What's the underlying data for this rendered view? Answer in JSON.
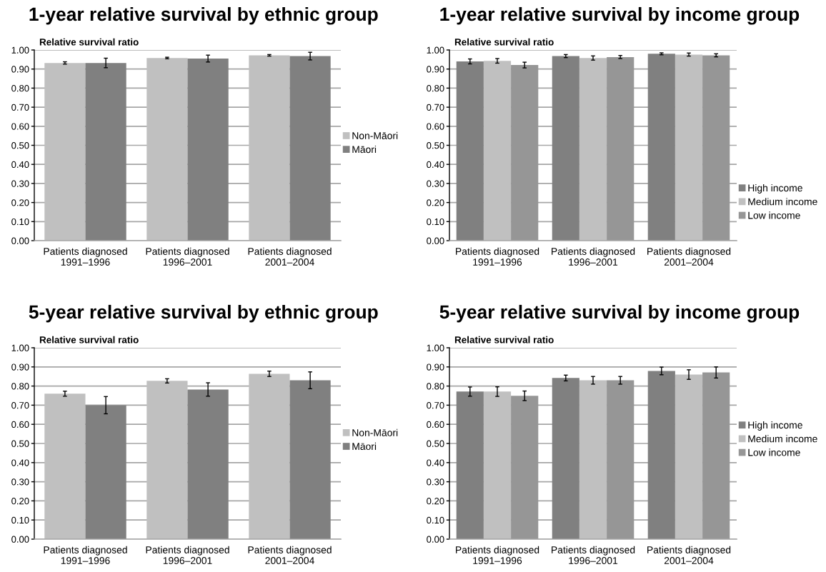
{
  "chart_data": [
    {
      "type": "bar",
      "title": "1-year relative survival by ethnic group",
      "ylabel": "Relative survival ratio",
      "categories": [
        "Patients diagnosed\n1991–1996",
        "Patients diagnosed\n1996–2001",
        "Patients diagnosed\n2001–2004"
      ],
      "series": [
        {
          "name": "Non-Māori",
          "color": "#c0c0c0",
          "values": [
            0.932,
            0.958,
            0.972
          ],
          "errors": [
            0.006,
            0.004,
            0.004
          ]
        },
        {
          "name": "Māori",
          "color": "#808080",
          "values": [
            0.932,
            0.955,
            0.968
          ],
          "errors": [
            0.025,
            0.018,
            0.02
          ]
        }
      ],
      "ylim": [
        0,
        1
      ],
      "yticks": [
        {
          "value": 0,
          "label": "0.00"
        },
        {
          "value": 0.1,
          "label": "0.10"
        },
        {
          "value": 0.2,
          "label": "0.20"
        },
        {
          "value": 0.3,
          "label": "0.30"
        },
        {
          "value": 0.4,
          "label": "0.40"
        },
        {
          "value": 0.5,
          "label": "0.50"
        },
        {
          "value": 0.6,
          "label": "0.60"
        },
        {
          "value": 0.7,
          "label": "0.70"
        },
        {
          "value": 0.8,
          "label": "0.80"
        },
        {
          "value": 0.9,
          "label": "0.90"
        },
        {
          "value": 1,
          "label": "1.00"
        }
      ],
      "grid": "y",
      "legend": "right"
    },
    {
      "type": "bar",
      "title": "1-year relative survival by income group",
      "ylabel": "Relative survival ratio",
      "categories": [
        "Patients diagnosed\n1991–1996",
        "Patients diagnosed\n1996–2001",
        "Patients diagnosed\n2001–2004"
      ],
      "series": [
        {
          "name": "High income",
          "color": "#808080",
          "values": [
            0.94,
            0.968,
            0.98
          ],
          "errors": [
            0.013,
            0.008,
            0.005
          ]
        },
        {
          "name": "Medium income",
          "color": "#c0c0c0",
          "values": [
            0.943,
            0.958,
            0.976
          ],
          "errors": [
            0.012,
            0.011,
            0.008
          ]
        },
        {
          "name": "Low income",
          "color": "#969696",
          "values": [
            0.921,
            0.963,
            0.972
          ],
          "errors": [
            0.015,
            0.008,
            0.008
          ]
        }
      ],
      "ylim": [
        0,
        1
      ],
      "yticks": [
        {
          "value": 0,
          "label": "0.00"
        },
        {
          "value": 0.1,
          "label": "0.10"
        },
        {
          "value": 0.2,
          "label": "0.20"
        },
        {
          "value": 0.3,
          "label": "0.30"
        },
        {
          "value": 0.4,
          "label": "0.40"
        },
        {
          "value": 0.5,
          "label": "0.50"
        },
        {
          "value": 0.6,
          "label": "0.60"
        },
        {
          "value": 0.7,
          "label": "0.70"
        },
        {
          "value": 0.8,
          "label": "0.80"
        },
        {
          "value": 0.9,
          "label": "0.90"
        },
        {
          "value": 1,
          "label": "1.00"
        }
      ],
      "grid": "y",
      "legend": "right"
    },
    {
      "type": "bar",
      "title": "5-year relative survival by ethnic group",
      "ylabel": "Relative survival ratio",
      "categories": [
        "Patients diagnosed\n1991–1996",
        "Patients diagnosed\n1996–2001",
        "Patients diagnosed\n2001–2004"
      ],
      "series": [
        {
          "name": "Non-Māori",
          "color": "#c0c0c0",
          "values": [
            0.76,
            0.827,
            0.864
          ],
          "errors": [
            0.013,
            0.011,
            0.014
          ]
        },
        {
          "name": "Māori",
          "color": "#808080",
          "values": [
            0.7,
            0.782,
            0.83
          ],
          "errors": [
            0.045,
            0.035,
            0.044
          ]
        }
      ],
      "ylim": [
        0,
        1
      ],
      "yticks": [
        {
          "value": 0,
          "label": "0.00"
        },
        {
          "value": 0.1,
          "label": "0.10"
        },
        {
          "value": 0.2,
          "label": "0.20"
        },
        {
          "value": 0.3,
          "label": "0.30"
        },
        {
          "value": 0.4,
          "label": "0.40"
        },
        {
          "value": 0.5,
          "label": "0.50"
        },
        {
          "value": 0.6,
          "label": "0.60"
        },
        {
          "value": 0.7,
          "label": "0.70"
        },
        {
          "value": 0.8,
          "label": "0.80"
        },
        {
          "value": 0.9,
          "label": "0.90"
        },
        {
          "value": 1,
          "label": "1.00"
        }
      ],
      "grid": "y",
      "legend": "right"
    },
    {
      "type": "bar",
      "title": "5-year relative survival by income group",
      "ylabel": "Relative survival ratio",
      "categories": [
        "Patients diagnosed\n1991–1996",
        "Patients diagnosed\n1996–2001",
        "Patients diagnosed\n2001–2004"
      ],
      "series": [
        {
          "name": "High income",
          "color": "#808080",
          "values": [
            0.771,
            0.842,
            0.879
          ],
          "errors": [
            0.024,
            0.015,
            0.02
          ]
        },
        {
          "name": "Medium income",
          "color": "#c0c0c0",
          "values": [
            0.771,
            0.83,
            0.86
          ],
          "errors": [
            0.025,
            0.02,
            0.025
          ]
        },
        {
          "name": "Low income",
          "color": "#969696",
          "values": [
            0.749,
            0.83,
            0.871
          ],
          "errors": [
            0.025,
            0.02,
            0.029
          ]
        }
      ],
      "ylim": [
        0,
        1
      ],
      "yticks": [
        {
          "value": 0,
          "label": "0.00"
        },
        {
          "value": 0.1,
          "label": "0.10"
        },
        {
          "value": 0.2,
          "label": "0.20"
        },
        {
          "value": 0.3,
          "label": "0.30"
        },
        {
          "value": 0.4,
          "label": "0.40"
        },
        {
          "value": 0.5,
          "label": "0.50"
        },
        {
          "value": 0.6,
          "label": "0.60"
        },
        {
          "value": 0.7,
          "label": "0.70"
        },
        {
          "value": 0.8,
          "label": "0.80"
        },
        {
          "value": 0.9,
          "label": "0.90"
        },
        {
          "value": 1,
          "label": "1.00"
        }
      ],
      "grid": "y",
      "legend": "right"
    }
  ]
}
